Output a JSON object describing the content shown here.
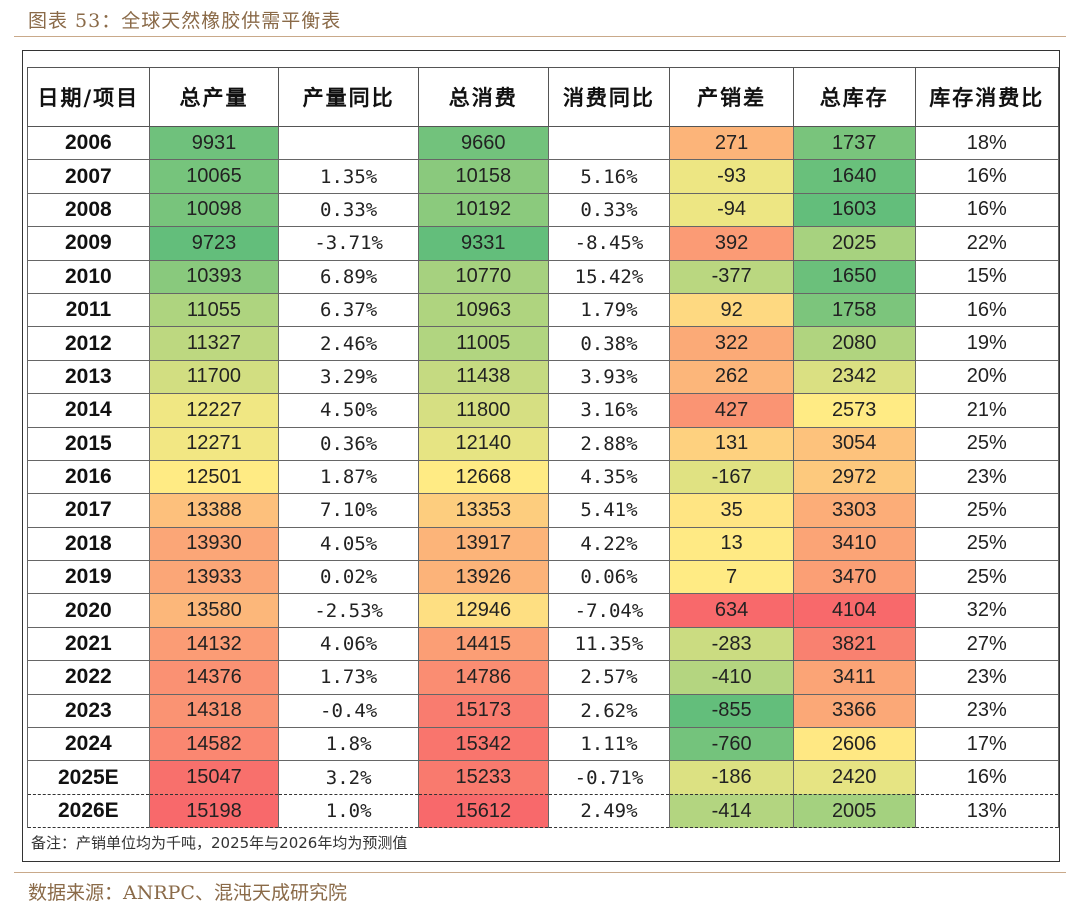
{
  "title": "图表 53：全球天然橡胶供需平衡表",
  "headers": [
    "日期/项目",
    "总产量",
    "产量同比",
    "总消费",
    "消费同比",
    "产销差",
    "总库存",
    "库存消费比"
  ],
  "rows": [
    {
      "year": "2006",
      "prod": "9931",
      "prod_yoy": "",
      "cons": "9660",
      "cons_yoy": "",
      "diff": "271",
      "stock": "1737",
      "ratio": "18%"
    },
    {
      "year": "2007",
      "prod": "10065",
      "prod_yoy": "1.35%",
      "cons": "10158",
      "cons_yoy": "5.16%",
      "diff": "-93",
      "stock": "1640",
      "ratio": "16%"
    },
    {
      "year": "2008",
      "prod": "10098",
      "prod_yoy": "0.33%",
      "cons": "10192",
      "cons_yoy": "0.33%",
      "diff": "-94",
      "stock": "1603",
      "ratio": "16%"
    },
    {
      "year": "2009",
      "prod": "9723",
      "prod_yoy": "-3.71%",
      "cons": "9331",
      "cons_yoy": "-8.45%",
      "diff": "392",
      "stock": "2025",
      "ratio": "22%"
    },
    {
      "year": "2010",
      "prod": "10393",
      "prod_yoy": "6.89%",
      "cons": "10770",
      "cons_yoy": "15.42%",
      "diff": "-377",
      "stock": "1650",
      "ratio": "15%"
    },
    {
      "year": "2011",
      "prod": "11055",
      "prod_yoy": "6.37%",
      "cons": "10963",
      "cons_yoy": "1.79%",
      "diff": "92",
      "stock": "1758",
      "ratio": "16%"
    },
    {
      "year": "2012",
      "prod": "11327",
      "prod_yoy": "2.46%",
      "cons": "11005",
      "cons_yoy": "0.38%",
      "diff": "322",
      "stock": "2080",
      "ratio": "19%"
    },
    {
      "year": "2013",
      "prod": "11700",
      "prod_yoy": "3.29%",
      "cons": "11438",
      "cons_yoy": "3.93%",
      "diff": "262",
      "stock": "2342",
      "ratio": "20%"
    },
    {
      "year": "2014",
      "prod": "12227",
      "prod_yoy": "4.50%",
      "cons": "11800",
      "cons_yoy": "3.16%",
      "diff": "427",
      "stock": "2573",
      "ratio": "21%"
    },
    {
      "year": "2015",
      "prod": "12271",
      "prod_yoy": "0.36%",
      "cons": "12140",
      "cons_yoy": "2.88%",
      "diff": "131",
      "stock": "3054",
      "ratio": "25%"
    },
    {
      "year": "2016",
      "prod": "12501",
      "prod_yoy": "1.87%",
      "cons": "12668",
      "cons_yoy": "4.35%",
      "diff": "-167",
      "stock": "2972",
      "ratio": "23%"
    },
    {
      "year": "2017",
      "prod": "13388",
      "prod_yoy": "7.10%",
      "cons": "13353",
      "cons_yoy": "5.41%",
      "diff": "35",
      "stock": "3303",
      "ratio": "25%"
    },
    {
      "year": "2018",
      "prod": "13930",
      "prod_yoy": "4.05%",
      "cons": "13917",
      "cons_yoy": "4.22%",
      "diff": "13",
      "stock": "3410",
      "ratio": "25%"
    },
    {
      "year": "2019",
      "prod": "13933",
      "prod_yoy": "0.02%",
      "cons": "13926",
      "cons_yoy": "0.06%",
      "diff": "7",
      "stock": "3470",
      "ratio": "25%"
    },
    {
      "year": "2020",
      "prod": "13580",
      "prod_yoy": "-2.53%",
      "cons": "12946",
      "cons_yoy": "-7.04%",
      "diff": "634",
      "stock": "4104",
      "ratio": "32%"
    },
    {
      "year": "2021",
      "prod": "14132",
      "prod_yoy": "4.06%",
      "cons": "14415",
      "cons_yoy": "11.35%",
      "diff": "-283",
      "stock": "3821",
      "ratio": "27%"
    },
    {
      "year": "2022",
      "prod": "14376",
      "prod_yoy": "1.73%",
      "cons": "14786",
      "cons_yoy": "2.57%",
      "diff": "-410",
      "stock": "3411",
      "ratio": "23%"
    },
    {
      "year": "2023",
      "prod": "14318",
      "prod_yoy": "-0.4%",
      "cons": "15173",
      "cons_yoy": "2.62%",
      "diff": "-855",
      "stock": "3366",
      "ratio": "23%"
    },
    {
      "year": "2024",
      "prod": "14582",
      "prod_yoy": "1.8%",
      "cons": "15342",
      "cons_yoy": "1.11%",
      "diff": "-760",
      "stock": "2606",
      "ratio": "17%"
    },
    {
      "year": "2025E",
      "prod": "15047",
      "prod_yoy": "3.2%",
      "cons": "15233",
      "cons_yoy": "-0.71%",
      "diff": "-186",
      "stock": "2420",
      "ratio": "16%"
    },
    {
      "year": "2026E",
      "prod": "15198",
      "prod_yoy": "1.0%",
      "cons": "15612",
      "cons_yoy": "2.49%",
      "diff": "-414",
      "stock": "2005",
      "ratio": "13%"
    }
  ],
  "colors": {
    "low_green": "#63be7b",
    "mid_yellow": "#ffeb84",
    "high_red": "#f8696b"
  },
  "note": "备注：产销单位均为千吨，2025年与2026年均为预测值",
  "source": "数据来源：ANRPC、混沌天成研究院"
}
